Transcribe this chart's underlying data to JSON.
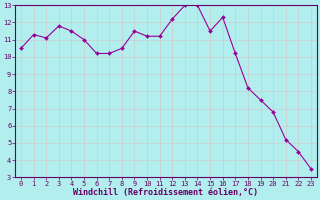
{
  "x": [
    0,
    1,
    2,
    3,
    4,
    5,
    6,
    7,
    8,
    9,
    10,
    11,
    12,
    13,
    14,
    15,
    16,
    17,
    18,
    19,
    20,
    21,
    22,
    23
  ],
  "y": [
    10.5,
    11.3,
    11.1,
    11.8,
    11.5,
    11.0,
    10.2,
    10.2,
    10.5,
    11.5,
    11.2,
    11.2,
    12.2,
    13.0,
    13.0,
    11.5,
    12.3,
    10.2,
    8.2,
    7.5,
    6.8,
    5.2,
    4.5,
    3.5
  ],
  "line_color": "#990099",
  "marker_color": "#990099",
  "bg_color": "#b2eeee",
  "grid_color": "#cccccc",
  "xlabel": "Windchill (Refroidissement éolien,°C)",
  "xlabel_color": "#660066",
  "tick_label_color": "#660066",
  "spine_color": "#660066",
  "xlim": [
    -0.5,
    23.5
  ],
  "ylim": [
    3,
    13
  ],
  "yticks": [
    3,
    4,
    5,
    6,
    7,
    8,
    9,
    10,
    11,
    12,
    13
  ],
  "xticks": [
    0,
    1,
    2,
    3,
    4,
    5,
    6,
    7,
    8,
    9,
    10,
    11,
    12,
    13,
    14,
    15,
    16,
    17,
    18,
    19,
    20,
    21,
    22,
    23
  ],
  "tick_fontsize": 5.0,
  "xlabel_fontsize": 6.0,
  "line_width": 0.8,
  "marker_size": 2.0
}
